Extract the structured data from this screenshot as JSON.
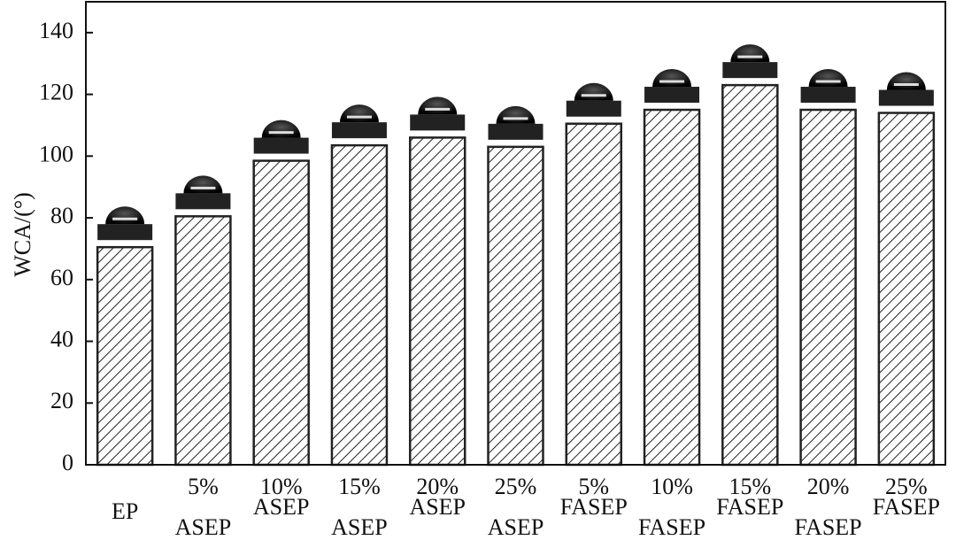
{
  "chart_data": {
    "type": "bar",
    "y_label": "WCA/(°)",
    "categories": [
      [
        "EP"
      ],
      [
        "5%",
        "ASEP"
      ],
      [
        "10%",
        "ASEP"
      ],
      [
        "15%",
        "ASEP"
      ],
      [
        "20%",
        "ASEP"
      ],
      [
        "25%",
        "ASEP"
      ],
      [
        "5%",
        "FASEP"
      ],
      [
        "10%",
        "FASEP"
      ],
      [
        "15%",
        "FASEP"
      ],
      [
        "20%",
        "FASEP"
      ],
      [
        "25%",
        "FASEP"
      ]
    ],
    "values": [
      70.5,
      80.5,
      98.5,
      103.5,
      106,
      103,
      110.5,
      115,
      123,
      115,
      114
    ],
    "color": "#222222",
    "ylim": [
      0,
      150
    ],
    "yticks": [
      0,
      20,
      40,
      60,
      80,
      100,
      120,
      140
    ]
  }
}
